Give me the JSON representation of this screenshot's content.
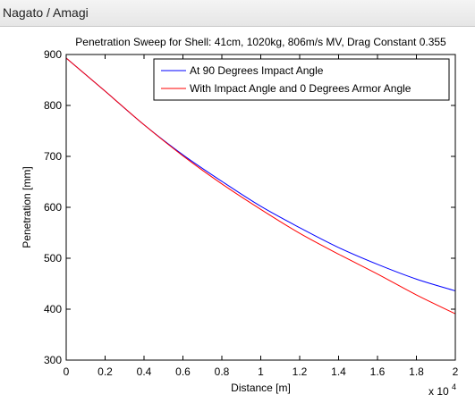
{
  "window": {
    "title": "Nagato / Amagi"
  },
  "chart_data": {
    "type": "line",
    "title": "Penetration Sweep for Shell: 41cm, 1020kg, 806m/s MV, Drag Constant 0.355",
    "xlabel": "Distance [m]",
    "ylabel": "Penetration [mm]",
    "x_multiplier_label": "x 10",
    "x_multiplier_exponent": "4",
    "xlim": [
      0,
      20000
    ],
    "ylim": [
      300,
      900
    ],
    "xticks": [
      0,
      2000,
      4000,
      6000,
      8000,
      10000,
      12000,
      14000,
      16000,
      18000,
      20000
    ],
    "xtick_labels": [
      "0",
      "0.2",
      "0.4",
      "0.6",
      "0.8",
      "1",
      "1.2",
      "1.4",
      "1.6",
      "1.8",
      "2"
    ],
    "yticks": [
      300,
      400,
      500,
      600,
      700,
      800,
      900
    ],
    "ytick_labels": [
      "300",
      "400",
      "500",
      "600",
      "700",
      "800",
      "900"
    ],
    "grid": false,
    "legend_position": "top-right",
    "x": [
      0,
      2000,
      4000,
      6000,
      8000,
      10000,
      12000,
      14000,
      16000,
      18000,
      20000
    ],
    "series": [
      {
        "name": "At 90 Degrees Impact Angle",
        "color": "#0000ff",
        "values": [
          893,
          828,
          762,
          703,
          651,
          602,
          560,
          521,
          488,
          459,
          436
        ]
      },
      {
        "name": "With Impact Angle and 0 Degrees Armor Angle",
        "color": "#ff0000",
        "values": [
          893,
          828,
          762,
          701,
          646,
          596,
          549,
          508,
          469,
          428,
          391
        ]
      }
    ]
  }
}
